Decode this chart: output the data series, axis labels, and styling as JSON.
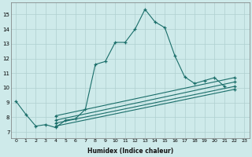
{
  "xlabel": "Humidex (Indice chaleur)",
  "xlim": [
    -0.5,
    23.5
  ],
  "ylim": [
    6.6,
    15.8
  ],
  "xticks": [
    0,
    1,
    2,
    3,
    4,
    5,
    6,
    7,
    8,
    9,
    10,
    11,
    12,
    13,
    14,
    15,
    16,
    17,
    18,
    19,
    20,
    21,
    22,
    23
  ],
  "yticks": [
    7,
    8,
    9,
    10,
    11,
    12,
    13,
    14,
    15
  ],
  "bg_color": "#ceeaea",
  "grid_color": "#afd0d0",
  "line_color": "#1a6e6a",
  "lines": [
    {
      "x": [
        0,
        1,
        2,
        3,
        4,
        5,
        6,
        7,
        8,
        9,
        10,
        11,
        12,
        13,
        14,
        15,
        16,
        17,
        18,
        19,
        20,
        21,
        22
      ],
      "y": [
        9.1,
        8.2,
        7.4,
        7.5,
        7.3,
        7.8,
        7.9,
        8.55,
        11.6,
        11.8,
        13.1,
        13.1,
        14.0,
        15.35,
        14.5,
        14.1,
        12.2,
        10.75,
        10.3,
        10.5,
        10.7,
        10.1,
        null
      ]
    },
    {
      "x": [
        4,
        22
      ],
      "y": [
        8.1,
        10.7
      ]
    },
    {
      "x": [
        4,
        22
      ],
      "y": [
        7.8,
        10.4
      ]
    },
    {
      "x": [
        4,
        22
      ],
      "y": [
        7.6,
        10.1
      ]
    },
    {
      "x": [
        4,
        22
      ],
      "y": [
        7.4,
        9.9
      ]
    }
  ]
}
